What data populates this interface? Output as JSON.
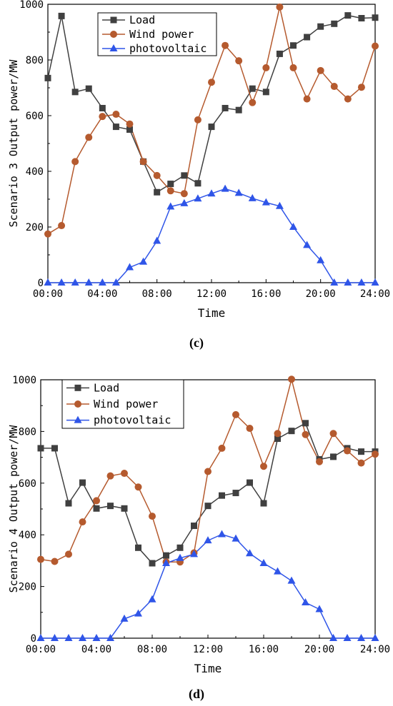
{
  "chart_data": [
    {
      "type": "line",
      "panel_label": "(c)",
      "xlabel": "Time",
      "ylabel": "Scenario 3 Output power/MW",
      "x_ticks": [
        "00:00",
        "04:00",
        "08:00",
        "12:00",
        "16:00",
        "20:00",
        "24:00"
      ],
      "x": [
        0,
        1,
        2,
        3,
        4,
        5,
        6,
        7,
        8,
        9,
        10,
        11,
        12,
        13,
        14,
        15,
        16,
        17,
        18,
        19,
        20,
        21,
        22,
        23,
        24
      ],
      "xlim": [
        0,
        24
      ],
      "ylim": [
        0,
        1000
      ],
      "y_ticks": [
        0,
        200,
        400,
        600,
        800,
        1000
      ],
      "legend_position": "top-left",
      "series": [
        {
          "name": "Load",
          "color": "#404040",
          "marker": "square",
          "values": [
            735,
            958,
            685,
            697,
            627,
            560,
            550,
            435,
            325,
            355,
            385,
            357,
            560,
            627,
            620,
            697,
            685,
            822,
            852,
            882,
            920,
            930,
            960,
            950,
            952
          ]
        },
        {
          "name": "Wind power",
          "color": "#b55a2e",
          "marker": "circle",
          "values": [
            175,
            205,
            435,
            522,
            597,
            605,
            570,
            435,
            385,
            330,
            320,
            585,
            720,
            852,
            797,
            647,
            772,
            990,
            772,
            660,
            762,
            705,
            660,
            702,
            850
          ]
        },
        {
          "name": "photovoltaic",
          "color": "#2f55e8",
          "marker": "triangle",
          "values": [
            0,
            0,
            0,
            0,
            0,
            0,
            55,
            75,
            150,
            273,
            285,
            302,
            320,
            337,
            322,
            303,
            288,
            275,
            200,
            135,
            80,
            0,
            0,
            0,
            0
          ]
        }
      ]
    },
    {
      "type": "line",
      "panel_label": "(d)",
      "xlabel": "Time",
      "ylabel": "Scenario 4 Output power/MW",
      "x_ticks": [
        "00:00",
        "04:00",
        "08:00",
        "12:00",
        "16:00",
        "20:00",
        "24:00"
      ],
      "x": [
        0,
        1,
        2,
        3,
        4,
        5,
        6,
        7,
        8,
        9,
        10,
        11,
        12,
        13,
        14,
        15,
        16,
        17,
        18,
        19,
        20,
        21,
        22,
        23,
        24
      ],
      "xlim": [
        0,
        24
      ],
      "ylim": [
        0,
        1000
      ],
      "y_ticks": [
        0,
        200,
        400,
        600,
        800,
        1000
      ],
      "legend_position": "top-left",
      "series": [
        {
          "name": "Load",
          "color": "#404040",
          "marker": "square",
          "values": [
            735,
            735,
            522,
            602,
            502,
            512,
            502,
            350,
            290,
            320,
            350,
            435,
            512,
            552,
            562,
            602,
            522,
            772,
            802,
            832,
            692,
            702,
            735,
            722,
            722
          ]
        },
        {
          "name": "Wind power",
          "color": "#b55a2e",
          "marker": "circle",
          "values": [
            305,
            297,
            325,
            450,
            532,
            628,
            638,
            585,
            472,
            295,
            295,
            330,
            645,
            735,
            865,
            812,
            665,
            792,
            1002,
            788,
            683,
            792,
            725,
            678,
            712
          ]
        },
        {
          "name": "photovoltaic",
          "color": "#2f55e8",
          "marker": "triangle",
          "values": [
            0,
            0,
            0,
            0,
            0,
            0,
            75,
            95,
            150,
            290,
            310,
            325,
            378,
            402,
            385,
            328,
            290,
            258,
            222,
            138,
            112,
            0,
            0,
            0,
            0
          ]
        }
      ]
    }
  ]
}
